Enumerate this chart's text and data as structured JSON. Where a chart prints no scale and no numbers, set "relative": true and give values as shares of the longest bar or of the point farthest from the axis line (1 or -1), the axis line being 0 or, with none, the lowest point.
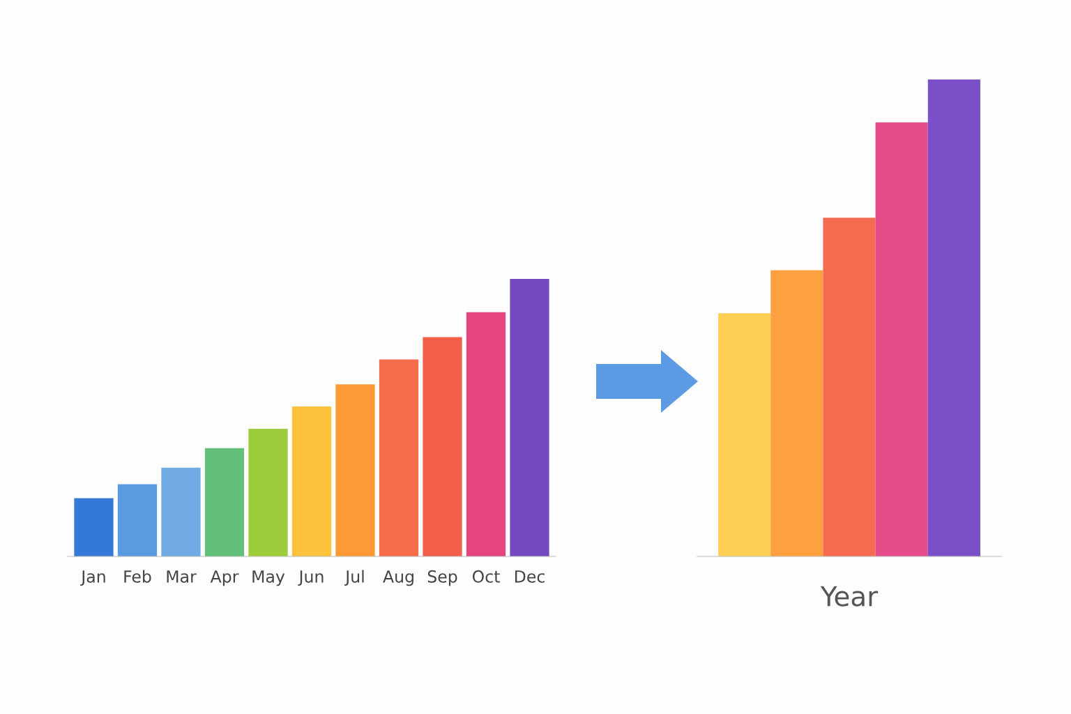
{
  "chart_data": [
    {
      "type": "bar",
      "relative": true,
      "categories": [
        "Jan",
        "Feb",
        "Mar",
        "Apr",
        "May",
        "Jun",
        "Jul",
        "Aug",
        "Sep",
        "Oct",
        "Dec"
      ],
      "values": [
        0.21,
        0.26,
        0.32,
        0.39,
        0.46,
        0.54,
        0.62,
        0.71,
        0.79,
        0.88,
        1
      ],
      "colors": [
        "#3478d8",
        "#5a9ae0",
        "#6faae2",
        "#62c07a",
        "#9ccc3c",
        "#fcc23c",
        "#fd9a36",
        "#f56c4a",
        "#f35f48",
        "#e4457f",
        "#7448c0"
      ]
    },
    {
      "type": "bar",
      "relative": true,
      "xlabel": "Year",
      "categories": [
        null,
        null,
        null,
        null,
        null
      ],
      "values": [
        0.51,
        0.6,
        0.71,
        0.91,
        1
      ],
      "colors": [
        "#fdd055",
        "#fda040",
        "#f56b50",
        "#e54d8a",
        "#7b4fc8"
      ]
    }
  ]
}
